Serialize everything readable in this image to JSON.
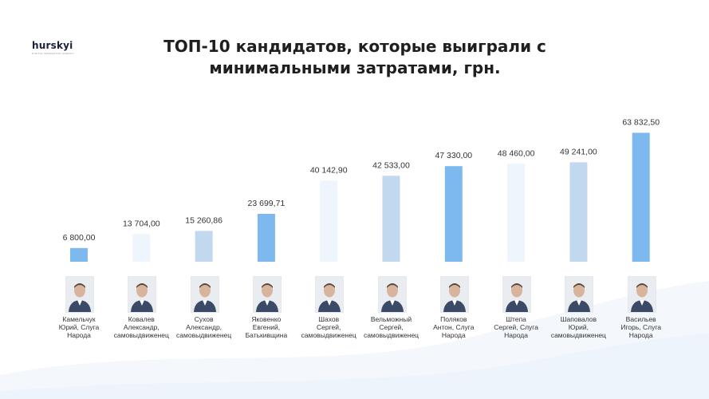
{
  "logo": {
    "brand": "hurskyi",
    "tagline": "DIGITAL MARKETING AGENCY"
  },
  "chart_data": {
    "type": "bar",
    "title": "ТОП-10 кандидатов, которые выиграли с минимальными затратами, грн.",
    "categories": [
      "Камельчук Юрий, Слуга Народа",
      "Ковалев Александр, самовыдвиженец",
      "Сухов Александр, самовыдвиженец",
      "Яковенко Евгений, Батькивщина",
      "Шахов Сергей, самовыдвиженец",
      "Вельможный Сергей, самовыдвиженец",
      "Поляков Антон, Слуга Народа",
      "Штепа Сергей, Слуга Народа",
      "Шаповалов Юрий, самовыдвиженец",
      "Васильев Игорь, Слуга Народа"
    ],
    "values": [
      6800.0,
      13704.0,
      15260.86,
      23699.71,
      40142.9,
      42533.0,
      47330.0,
      48460.0,
      49241.0,
      63832.5
    ],
    "value_labels": [
      "6 800,00",
      "13 704,00",
      "15 260,86",
      "23 699,71",
      "40 142,90",
      "42 533,00",
      "47 330,00",
      "48 460,00",
      "49 241,00",
      "63 832,50"
    ],
    "label_lines": [
      [
        "Камельчук",
        "Юрий, Слуга",
        "Народа"
      ],
      [
        "Ковалев",
        "Александр,",
        "самовыдвиженец"
      ],
      [
        "Сухов",
        "Александр,",
        "самовыдвиженец"
      ],
      [
        "Яковенко",
        "Евгений,",
        "Батькивщина"
      ],
      [
        "Шахов",
        "Сергей,",
        "самовыдвиженец"
      ],
      [
        "Вельможный",
        "Сергей,",
        "самовыдвиженец"
      ],
      [
        "Поляков",
        "Антон, Слуга",
        "Народа"
      ],
      [
        "Штепа",
        "Сергей, Слуга",
        "Народа"
      ],
      [
        "Шаповалов",
        "Юрий,",
        "самовыдвиженец"
      ],
      [
        "Васильев",
        "Игорь, Слуга",
        "Народа"
      ]
    ],
    "bar_colors": [
      "#7db8ef",
      "#eef5fd",
      "#c2d8ef",
      "#7db8ef",
      "#eef5fd",
      "#c2d8ef",
      "#7db8ef",
      "#eef5fd",
      "#c2d8ef",
      "#7db8ef"
    ],
    "ylim": [
      0,
      64000
    ],
    "grid": false,
    "legend": "none",
    "icons": [
      "person-photo-icon"
    ]
  }
}
